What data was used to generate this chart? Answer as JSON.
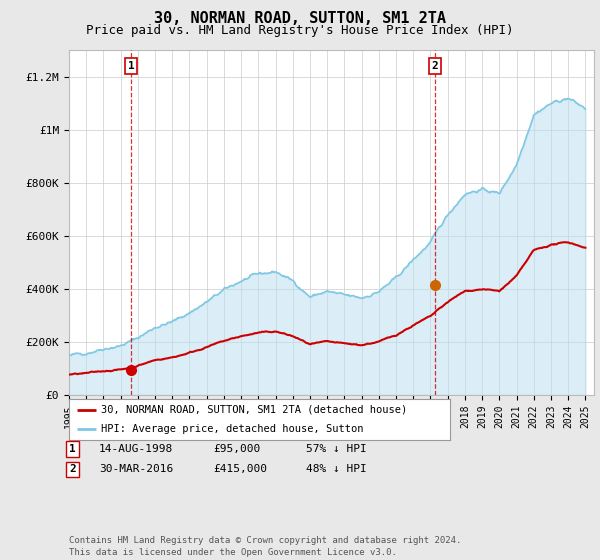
{
  "title": "30, NORMAN ROAD, SUTTON, SM1 2TA",
  "subtitle": "Price paid vs. HM Land Registry's House Price Index (HPI)",
  "title_fontsize": 11,
  "subtitle_fontsize": 9,
  "background_color": "#e8e8e8",
  "plot_bg_color": "#ffffff",
  "grid_color": "#cccccc",
  "hpi_color": "#7ec8e3",
  "hpi_fill_color": "#b8dff0",
  "price_color": "#cc0000",
  "sale1_x": 1998.62,
  "sale1_y": 95000,
  "sale2_x": 2016.25,
  "sale2_y": 415000,
  "legend_price_label": "30, NORMAN ROAD, SUTTON, SM1 2TA (detached house)",
  "legend_hpi_label": "HPI: Average price, detached house, Sutton",
  "ylim": [
    0,
    1300000
  ],
  "xlim_start": 1995.0,
  "xlim_end": 2025.5,
  "yticks": [
    0,
    200000,
    400000,
    600000,
    800000,
    1000000,
    1200000
  ],
  "ytick_labels": [
    "£0",
    "£200K",
    "£400K",
    "£600K",
    "£800K",
    "£1M",
    "£1.2M"
  ],
  "xticks": [
    1995,
    1996,
    1997,
    1998,
    1999,
    2000,
    2001,
    2002,
    2003,
    2004,
    2005,
    2006,
    2007,
    2008,
    2009,
    2010,
    2011,
    2012,
    2013,
    2014,
    2015,
    2016,
    2017,
    2018,
    2019,
    2020,
    2021,
    2022,
    2023,
    2024,
    2025
  ],
  "footer": "Contains HM Land Registry data © Crown copyright and database right 2024.\nThis data is licensed under the Open Government Licence v3.0.",
  "hpi_years": [
    1995,
    1996,
    1997,
    1998,
    1999,
    2000,
    2001,
    2002,
    2003,
    2004,
    2005,
    2006,
    2007,
    2008,
    2009,
    2010,
    2011,
    2012,
    2013,
    2014,
    2015,
    2016,
    2017,
    2018,
    2019,
    2020,
    2021,
    2022,
    2023,
    2024,
    2025
  ],
  "hpi_values": [
    148000,
    158000,
    175000,
    185000,
    215000,
    255000,
    275000,
    310000,
    350000,
    395000,
    430000,
    455000,
    465000,
    430000,
    370000,
    390000,
    375000,
    365000,
    390000,
    440000,
    510000,
    575000,
    680000,
    760000,
    775000,
    760000,
    870000,
    1060000,
    1100000,
    1120000,
    1080000
  ],
  "price_years": [
    1995,
    1996,
    1997,
    1998,
    1999,
    2000,
    2001,
    2002,
    2003,
    2004,
    2005,
    2006,
    2007,
    2008,
    2009,
    2010,
    2011,
    2012,
    2013,
    2014,
    2015,
    2016,
    2017,
    2018,
    2019,
    2020,
    2021,
    2022,
    2023,
    2024,
    2025
  ],
  "price_values": [
    76000,
    81000,
    90000,
    95000,
    110000,
    131000,
    141000,
    159000,
    180000,
    203000,
    221000,
    234000,
    239000,
    221000,
    190000,
    200000,
    193000,
    188000,
    200000,
    226000,
    262000,
    296000,
    350000,
    391000,
    399000,
    391000,
    448000,
    545000,
    566000,
    576000,
    556000
  ]
}
